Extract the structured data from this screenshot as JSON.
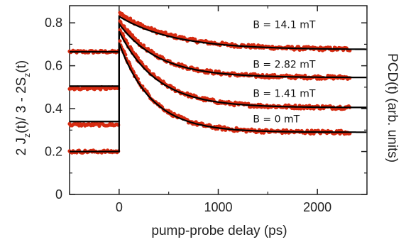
{
  "chart_data": {
    "type": "scatter",
    "title": "",
    "xlabel": "pump-probe delay  (ps)",
    "ylabel_left": {
      "main": "2 J",
      "sub1": "z",
      "mid": "(t)/ 3 - 2S",
      "sub2": "z",
      "tail": "(t)"
    },
    "ylabel_right": "PCD(t)  (arb. units)",
    "xlim": [
      -500,
      2500
    ],
    "ylim": [
      0,
      0.88
    ],
    "x_ticks": [
      0,
      1000,
      2000
    ],
    "x_tick_labels": [
      "0",
      "1000",
      "2000"
    ],
    "y_ticks": [
      0,
      0.2,
      0.4,
      0.6,
      0.8
    ],
    "y_tick_labels": [
      "0",
      "0.2",
      "0.4",
      "0.6",
      "0.8"
    ],
    "grid": false,
    "data_color": "#d62a10",
    "fit_color": "#000000",
    "series": [
      {
        "name": "B = 14.1 mT",
        "label_x": 1350,
        "label_y": 0.775,
        "baseline": 0.665,
        "fit_baseline": 0.665,
        "peak": 0.845,
        "final": 0.675,
        "tau": 550
      },
      {
        "name": "B = 2.82 mT",
        "label_x": 1350,
        "label_y": 0.59,
        "baseline": 0.495,
        "fit_baseline": 0.505,
        "peak": 0.81,
        "final": 0.545,
        "tau": 400
      },
      {
        "name": "B = 1.41 mT",
        "label_x": 1350,
        "label_y": 0.455,
        "baseline": 0.325,
        "fit_baseline": 0.34,
        "peak": 0.775,
        "final": 0.405,
        "tau": 380
      },
      {
        "name": "B = 0 mT",
        "label_x": 1350,
        "label_y": 0.335,
        "baseline": 0.2,
        "fit_baseline": 0.2,
        "peak": 0.72,
        "final": 0.29,
        "tau": 330
      }
    ]
  }
}
